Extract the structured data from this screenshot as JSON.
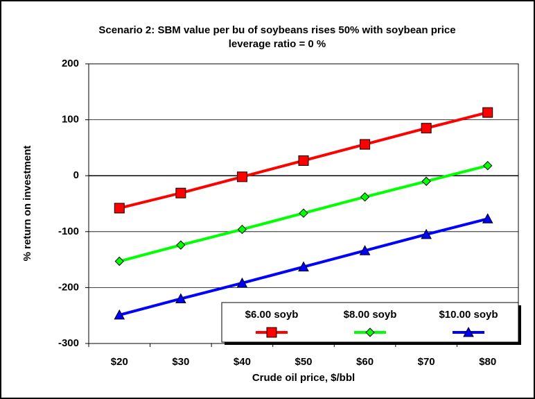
{
  "chart_data": {
    "type": "line",
    "title": "Scenario 2:  SBM value per bu of soybeans rises 50% with soybean price",
    "subtitle": "leverage ratio = 0 %",
    "x_label": "Crude oil price, $/bbl",
    "y_label": "% return on investment",
    "categories": [
      "$20",
      "$30",
      "$40",
      "$50",
      "$60",
      "$70",
      "$80"
    ],
    "series": [
      {
        "name": "$6.00 soyb",
        "color": "#ff0000",
        "marker": "square",
        "values": [
          -58,
          -31,
          -2,
          27,
          56,
          85,
          113
        ]
      },
      {
        "name": "$8.00 soyb",
        "color": "#00ff00",
        "marker": "diamond",
        "values": [
          -153,
          -124,
          -96,
          -67,
          -38,
          -10,
          18
        ]
      },
      {
        "name": "$10.00 soyb",
        "color": "#0000ff",
        "marker": "triangle",
        "values": [
          -249,
          -220,
          -192,
          -163,
          -134,
          -105,
          -77
        ]
      }
    ],
    "ylim": [
      -300,
      200
    ],
    "yticks": [
      -300,
      -200,
      -100,
      0,
      100,
      200
    ],
    "grid": true,
    "legend": "bottom-right"
  }
}
